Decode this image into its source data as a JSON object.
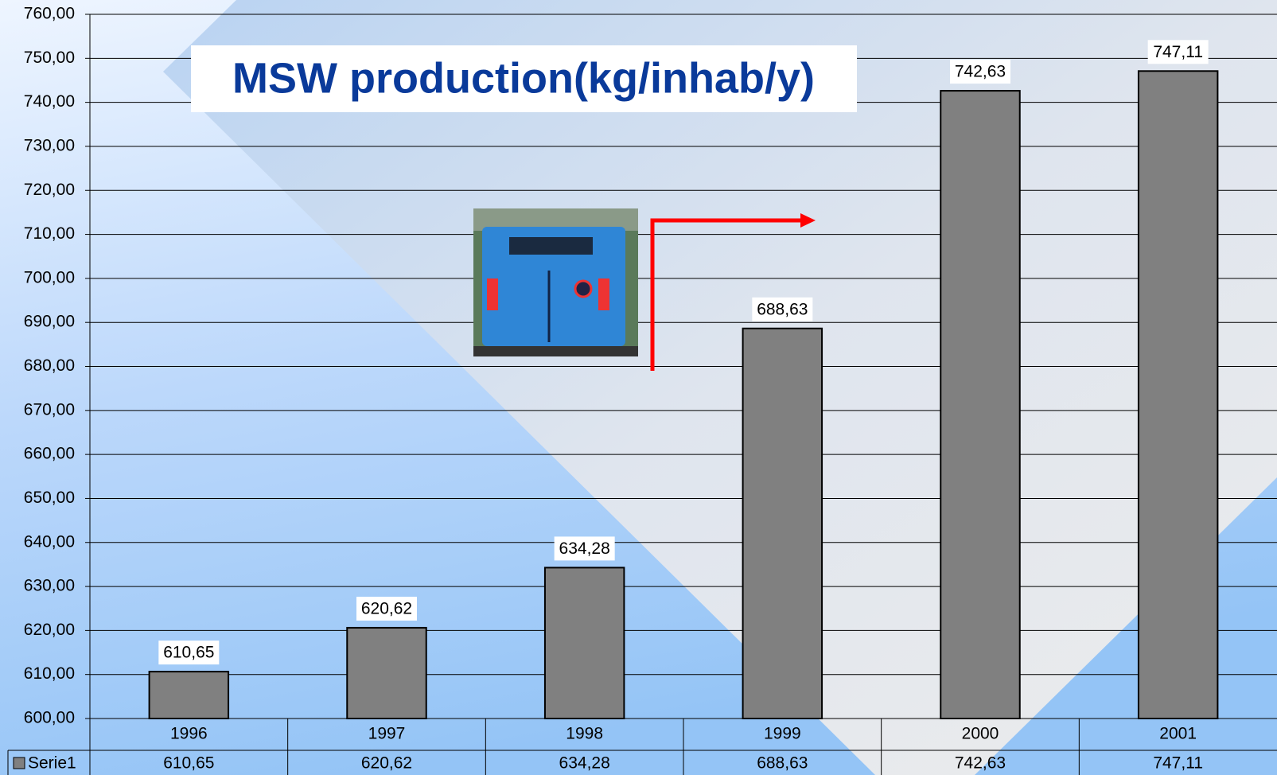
{
  "chart_data": {
    "type": "bar",
    "title": "MSW production(kg/inhab/y)",
    "categories": [
      "1996",
      "1997",
      "1998",
      "1999",
      "2000",
      "2001"
    ],
    "series": [
      {
        "name": "Serie1",
        "color": "#808080",
        "values": [
          610.65,
          620.62,
          634.28,
          688.63,
          742.63,
          747.11
        ],
        "value_labels": [
          "610,65",
          "620,62",
          "634,28",
          "688,63",
          "742,63",
          "747,11"
        ]
      }
    ],
    "ylim": [
      600,
      760
    ],
    "yticks": [
      {
        "value": 600,
        "label": "600,00"
      },
      {
        "value": 610,
        "label": "610,00"
      },
      {
        "value": 620,
        "label": "620,00"
      },
      {
        "value": 630,
        "label": "630,00"
      },
      {
        "value": 640,
        "label": "640,00"
      },
      {
        "value": 650,
        "label": "650,00"
      },
      {
        "value": 660,
        "label": "660,00"
      },
      {
        "value": 670,
        "label": "670,00"
      },
      {
        "value": 680,
        "label": "680,00"
      },
      {
        "value": 690,
        "label": "690,00"
      },
      {
        "value": 700,
        "label": "700,00"
      },
      {
        "value": 710,
        "label": "710,00"
      },
      {
        "value": 720,
        "label": "720,00"
      },
      {
        "value": 730,
        "label": "730,00"
      },
      {
        "value": 740,
        "label": "740,00"
      },
      {
        "value": 750,
        "label": "750,00"
      },
      {
        "value": 760,
        "label": "760,00"
      }
    ],
    "grid": true
  }
}
